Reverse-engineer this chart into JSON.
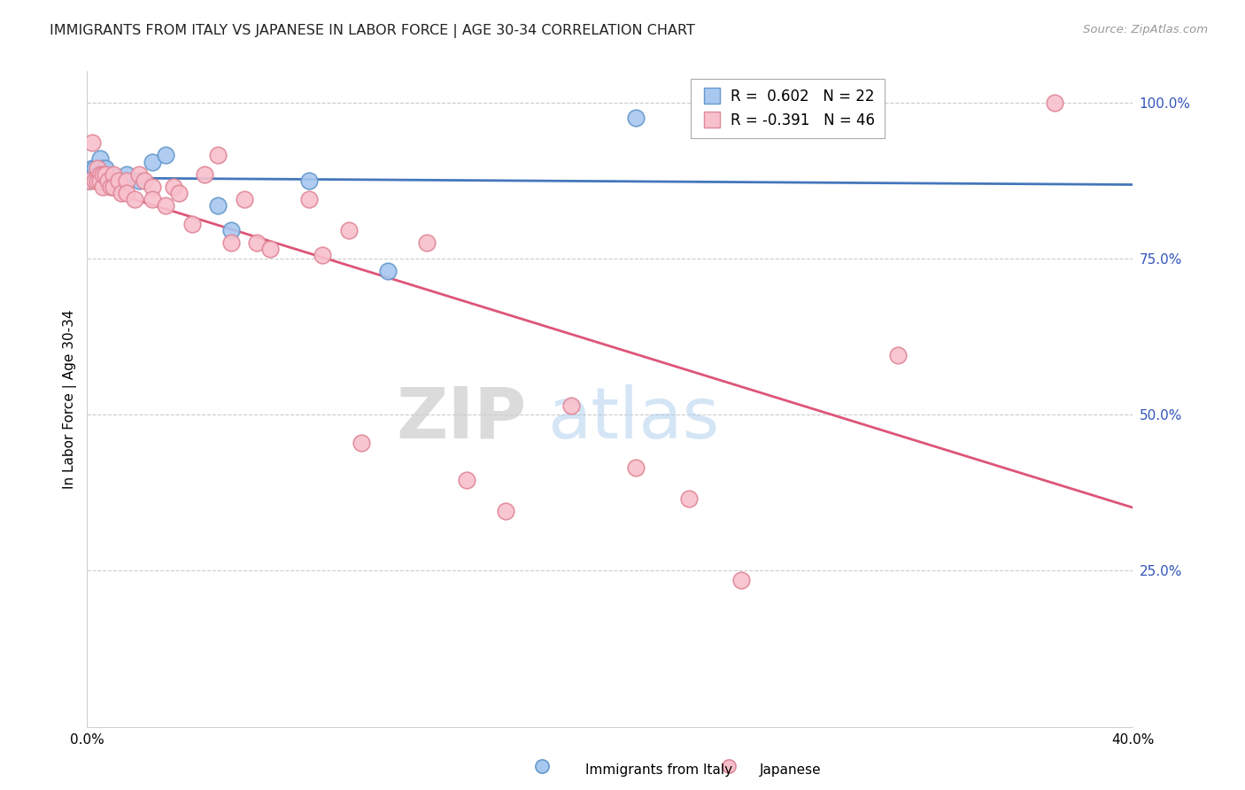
{
  "title": "IMMIGRANTS FROM ITALY VS JAPANESE IN LABOR FORCE | AGE 30-34 CORRELATION CHART",
  "source": "Source: ZipAtlas.com",
  "ylabel": "In Labor Force | Age 30-34",
  "xlim": [
    0.0,
    0.4
  ],
  "ylim": [
    0.0,
    1.05
  ],
  "italy_color": "#A8C8F0",
  "italy_edge_color": "#6699CC",
  "japanese_color": "#F8C0CC",
  "japanese_edge_color": "#E08898",
  "italy_line_color": "#4477BB",
  "japanese_line_color": "#DD5577",
  "italy_R": 0.602,
  "italy_N": 22,
  "japanese_R": -0.391,
  "japanese_N": 46,
  "legend_label_italy": "Immigrants from Italy",
  "legend_label_japanese": "Japanese",
  "watermark_zip": "ZIP",
  "watermark_atlas": "atlas",
  "italy_x": [
    0.001,
    0.002,
    0.003,
    0.003,
    0.004,
    0.005,
    0.005,
    0.006,
    0.006,
    0.007,
    0.008,
    0.01,
    0.01,
    0.015,
    0.02,
    0.025,
    0.03,
    0.05,
    0.055,
    0.085,
    0.115,
    0.21
  ],
  "italy_y": [
    0.875,
    0.895,
    0.885,
    0.895,
    0.885,
    0.885,
    0.91,
    0.885,
    0.895,
    0.895,
    0.875,
    0.88,
    0.87,
    0.885,
    0.875,
    0.905,
    0.915,
    0.835,
    0.795,
    0.875,
    0.73,
    0.975
  ],
  "japanese_x": [
    0.001,
    0.002,
    0.003,
    0.004,
    0.004,
    0.005,
    0.005,
    0.006,
    0.006,
    0.007,
    0.008,
    0.009,
    0.01,
    0.01,
    0.012,
    0.013,
    0.015,
    0.015,
    0.018,
    0.02,
    0.022,
    0.025,
    0.025,
    0.03,
    0.033,
    0.035,
    0.04,
    0.045,
    0.05,
    0.055,
    0.06,
    0.065,
    0.07,
    0.085,
    0.09,
    0.1,
    0.105,
    0.13,
    0.145,
    0.16,
    0.185,
    0.21,
    0.23,
    0.25,
    0.31,
    0.37
  ],
  "japanese_y": [
    0.875,
    0.935,
    0.875,
    0.895,
    0.875,
    0.885,
    0.875,
    0.865,
    0.885,
    0.885,
    0.875,
    0.865,
    0.885,
    0.865,
    0.875,
    0.855,
    0.875,
    0.855,
    0.845,
    0.885,
    0.875,
    0.865,
    0.845,
    0.835,
    0.865,
    0.855,
    0.805,
    0.885,
    0.915,
    0.775,
    0.845,
    0.775,
    0.765,
    0.845,
    0.755,
    0.795,
    0.455,
    0.775,
    0.395,
    0.345,
    0.515,
    0.415,
    0.365,
    0.235,
    0.595,
    1.0
  ]
}
